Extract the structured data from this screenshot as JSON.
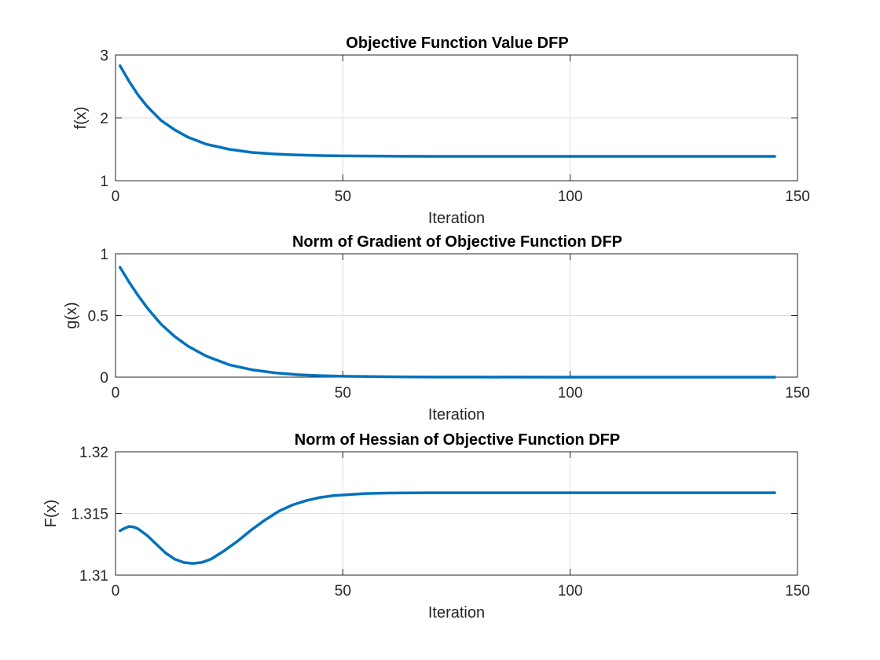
{
  "chart_data": [
    {
      "type": "line",
      "title": "Objective Function Value DFP",
      "xlabel": "Iteration",
      "ylabel": "f(x)",
      "xlim": [
        0,
        150
      ],
      "ylim": [
        1,
        3
      ],
      "xticks": [
        "0",
        "50",
        "100",
        "150"
      ],
      "yticks": [
        "1",
        "2",
        "3"
      ],
      "grid": true,
      "color": "#0072BD",
      "series": [
        {
          "x": [
            1,
            3,
            5,
            7,
            10,
            13,
            16,
            20,
            25,
            30,
            35,
            40,
            45,
            50,
            60,
            70,
            80,
            100,
            120,
            145
          ],
          "values": [
            2.83,
            2.58,
            2.36,
            2.18,
            1.96,
            1.81,
            1.69,
            1.58,
            1.5,
            1.45,
            1.425,
            1.41,
            1.4,
            1.395,
            1.39,
            1.388,
            1.388,
            1.388,
            1.388,
            1.388
          ]
        }
      ]
    },
    {
      "type": "line",
      "title": "Norm of Gradient of Objective Function DFP",
      "xlabel": "Iteration",
      "ylabel": "g(x)",
      "xlim": [
        0,
        150
      ],
      "ylim": [
        0,
        1
      ],
      "xticks": [
        "0",
        "50",
        "100",
        "150"
      ],
      "yticks": [
        "0",
        "0.5",
        "1"
      ],
      "grid": true,
      "color": "#0072BD",
      "series": [
        {
          "x": [
            1,
            3,
            5,
            7,
            10,
            13,
            16,
            20,
            25,
            30,
            35,
            40,
            45,
            50,
            60,
            70,
            80,
            100,
            120,
            145
          ],
          "values": [
            0.89,
            0.77,
            0.66,
            0.56,
            0.43,
            0.33,
            0.25,
            0.17,
            0.1,
            0.06,
            0.035,
            0.02,
            0.012,
            0.007,
            0.003,
            0.001,
            0.0005,
            0.0,
            0.0,
            0.0
          ]
        }
      ]
    },
    {
      "type": "line",
      "title": "Norm of Hessian of Objective Function DFP",
      "xlabel": "Iteration",
      "ylabel": "F(x)",
      "xlim": [
        0,
        150
      ],
      "ylim": [
        1.31,
        1.32
      ],
      "xticks": [
        "0",
        "50",
        "100",
        "150"
      ],
      "yticks": [
        "1.31",
        "1.315",
        "1.32"
      ],
      "grid": true,
      "color": "#0072BD",
      "series": [
        {
          "x": [
            1,
            2,
            3,
            4,
            5,
            7,
            9,
            11,
            13,
            15,
            17,
            19,
            21,
            24,
            27,
            30,
            33,
            36,
            39,
            42,
            45,
            48,
            50,
            55,
            60,
            70,
            80,
            100,
            120,
            145
          ],
          "values": [
            1.3136,
            1.3138,
            1.31395,
            1.3139,
            1.31375,
            1.3132,
            1.3125,
            1.3118,
            1.3113,
            1.31103,
            1.31095,
            1.31103,
            1.3113,
            1.312,
            1.3128,
            1.3137,
            1.3145,
            1.3152,
            1.3157,
            1.31605,
            1.3163,
            1.31645,
            1.3165,
            1.31662,
            1.31666,
            1.31668,
            1.31668,
            1.31668,
            1.31668,
            1.31668
          ]
        }
      ]
    }
  ]
}
